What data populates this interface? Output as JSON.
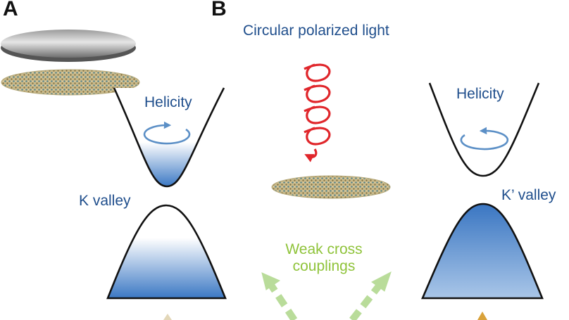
{
  "panels": {
    "a": "A",
    "b": "B"
  },
  "labels": {
    "light": "Circular polarized light",
    "helicity_left": "Helicity",
    "helicity_right": "Helicity",
    "k_valley": "K valley",
    "kprime_valley": "K’ valley",
    "coupling_line1": "Weak cross",
    "coupling_line2": "couplings"
  },
  "colors": {
    "text_blue": "#1f4e8c",
    "helicity_arrow": "#5b8fc6",
    "band_fill": "#3b78c4",
    "light_helix": "#e0262b",
    "coupling_arrow": "#b9dc9a",
    "coupling_text": "#8fc33a"
  }
}
